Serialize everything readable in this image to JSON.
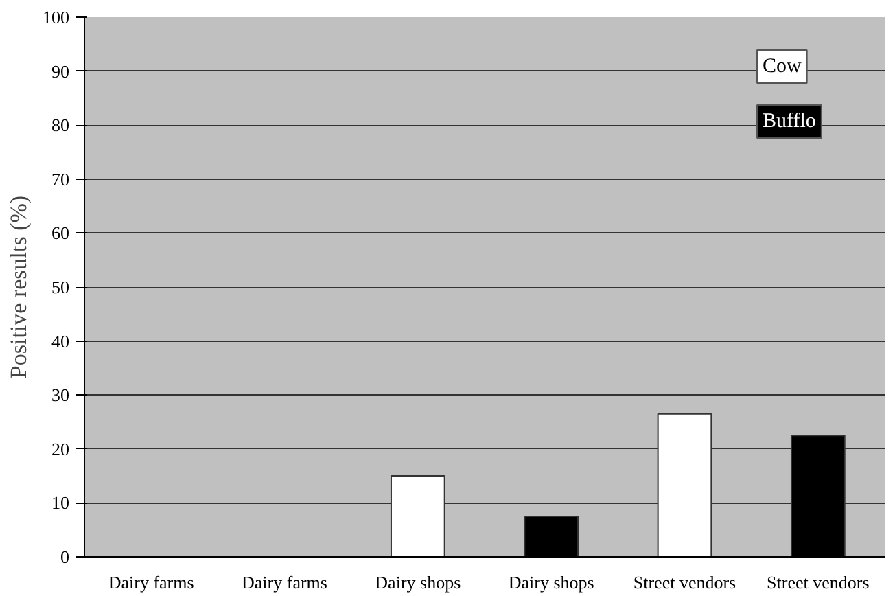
{
  "chart_data": {
    "type": "bar",
    "ylabel": "Positive results (%)",
    "categories": [
      "Dairy farms",
      "Dairy farms",
      "Dairy shops",
      "Dairy shops",
      "Street vendors",
      "Street vendors"
    ],
    "series": [
      {
        "name": "Cow",
        "color": "#ffffff",
        "values": [
          0,
          null,
          15,
          null,
          26.5,
          null
        ]
      },
      {
        "name": "Bufflo",
        "color": "#000000",
        "values": [
          null,
          0,
          null,
          7.5,
          null,
          22.5
        ]
      }
    ],
    "ylim": [
      0,
      100
    ],
    "yticks": [
      0,
      10,
      20,
      30,
      40,
      50,
      60,
      70,
      80,
      90,
      100
    ],
    "grid": "y",
    "legend": "top right"
  }
}
